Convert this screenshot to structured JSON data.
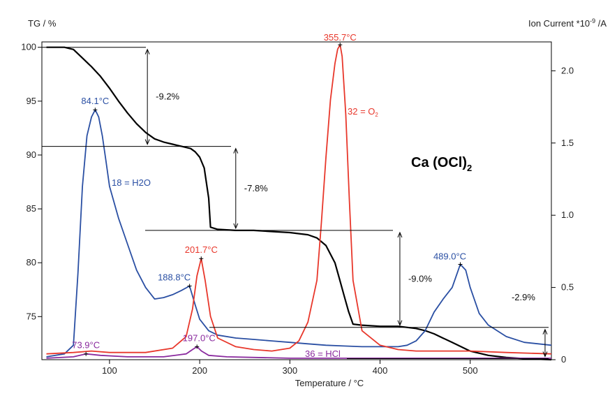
{
  "chart_data": {
    "type": "line",
    "title": "Ca (OCl)",
    "title_subscript": "2",
    "xlabel": "Temperature / °C",
    "ylabel_left": "TG / %",
    "ylabel_right_main": "Ion Current *10",
    "ylabel_right_sup": "-9",
    "ylabel_right_tail": " /A",
    "xlim": [
      25,
      590
    ],
    "ylim_left": [
      71,
      100.5
    ],
    "ylim_right": [
      0,
      2.2
    ],
    "x_ticks": [
      100,
      200,
      300,
      400,
      500
    ],
    "y_left_ticks": [
      75,
      80,
      85,
      90,
      95,
      100
    ],
    "y_right_ticks": [
      0,
      0.5,
      1.0,
      1.5,
      2.0
    ],
    "x_tick_labels": [
      "100",
      "200",
      "300",
      "400",
      "500"
    ],
    "y_left_tick_labels": [
      "75",
      "80",
      "85",
      "90",
      "95",
      "100"
    ],
    "y_right_tick_labels": [
      "0",
      "0.5",
      "1.0",
      "1.5",
      "2.0"
    ],
    "grid": false,
    "series": [
      {
        "name": "TG",
        "axis": "left",
        "color": "#000000",
        "x": [
          30,
          50,
          60,
          70,
          80,
          90,
          100,
          110,
          120,
          130,
          140,
          150,
          160,
          170,
          180,
          190,
          195,
          200,
          205,
          210,
          212,
          220,
          240,
          260,
          280,
          300,
          320,
          330,
          340,
          350,
          355,
          360,
          365,
          370,
          380,
          400,
          420,
          440,
          450,
          460,
          470,
          480,
          490,
          500,
          520,
          540,
          560,
          590
        ],
        "y": [
          100,
          100,
          99.8,
          99.0,
          98.2,
          97.3,
          96.2,
          95.0,
          93.9,
          92.9,
          92.1,
          91.5,
          91.2,
          91.0,
          90.8,
          90.6,
          90.3,
          89.8,
          88.8,
          86.0,
          83.3,
          83.1,
          83.0,
          83.0,
          82.9,
          82.8,
          82.6,
          82.3,
          81.6,
          80.0,
          78.5,
          77.0,
          75.5,
          74.3,
          74.2,
          74.1,
          74.1,
          73.9,
          73.7,
          73.4,
          73.0,
          72.6,
          72.2,
          71.8,
          71.4,
          71.2,
          71.1,
          71.0
        ]
      },
      {
        "name": "18 = H2O",
        "axis": "right",
        "color": "#2a4fa3",
        "x": [
          30,
          50,
          60,
          65,
          70,
          75,
          80,
          84.1,
          88,
          92,
          96,
          100,
          110,
          120,
          130,
          140,
          150,
          160,
          170,
          180,
          188.8,
          195,
          200,
          210,
          220,
          240,
          260,
          280,
          300,
          320,
          340,
          360,
          380,
          400,
          420,
          430,
          440,
          450,
          460,
          470,
          480,
          489,
          495,
          500,
          510,
          520,
          540,
          560,
          590
        ],
        "y": [
          0.02,
          0.04,
          0.1,
          0.6,
          1.2,
          1.55,
          1.68,
          1.73,
          1.68,
          1.55,
          1.38,
          1.2,
          0.98,
          0.8,
          0.62,
          0.5,
          0.42,
          0.43,
          0.45,
          0.48,
          0.51,
          0.38,
          0.28,
          0.2,
          0.17,
          0.15,
          0.14,
          0.13,
          0.12,
          0.11,
          0.1,
          0.095,
          0.09,
          0.09,
          0.09,
          0.1,
          0.13,
          0.2,
          0.33,
          0.42,
          0.5,
          0.66,
          0.62,
          0.5,
          0.32,
          0.24,
          0.16,
          0.12,
          0.1
        ]
      },
      {
        "name": "32 = O2",
        "axis": "right",
        "color": "#e8372b",
        "x": [
          30,
          60,
          80,
          100,
          140,
          170,
          185,
          192,
          197,
          201.7,
          206,
          212,
          220,
          240,
          260,
          280,
          300,
          310,
          320,
          330,
          335,
          340,
          345,
          350,
          353,
          355.7,
          358,
          362,
          366,
          370,
          380,
          400,
          420,
          440,
          480,
          500,
          540,
          590
        ],
        "y": [
          0.04,
          0.05,
          0.06,
          0.05,
          0.05,
          0.08,
          0.16,
          0.35,
          0.58,
          0.7,
          0.55,
          0.3,
          0.15,
          0.09,
          0.07,
          0.06,
          0.08,
          0.13,
          0.26,
          0.55,
          0.95,
          1.4,
          1.8,
          2.05,
          2.15,
          2.18,
          2.1,
          1.7,
          1.1,
          0.55,
          0.2,
          0.1,
          0.07,
          0.06,
          0.06,
          0.06,
          0.05,
          0.04
        ]
      },
      {
        "name": "36 = HCl",
        "axis": "right",
        "color": "#8a2a9e",
        "x": [
          30,
          60,
          73.9,
          90,
          120,
          160,
          185,
          192,
          197,
          202,
          210,
          230,
          300,
          400,
          500,
          590
        ],
        "y": [
          0.01,
          0.02,
          0.04,
          0.03,
          0.02,
          0.02,
          0.04,
          0.07,
          0.09,
          0.06,
          0.03,
          0.02,
          0.01,
          0.01,
          0.01,
          0.01
        ]
      }
    ],
    "peak_labels": [
      {
        "text": "84.1°C",
        "x": 84.1,
        "y": 1.73,
        "axis": "right",
        "series": "18 = H2O"
      },
      {
        "text": "188.8°C",
        "x": 188.8,
        "y": 0.51,
        "axis": "right",
        "series": "18 = H2O"
      },
      {
        "text": "489.0°C",
        "x": 489,
        "y": 0.66,
        "axis": "right",
        "series": "18 = H2O"
      },
      {
        "text": "201.7°C",
        "x": 201.7,
        "y": 0.7,
        "axis": "right",
        "series": "32 = O2"
      },
      {
        "text": "355.7°C",
        "x": 355.7,
        "y": 2.18,
        "axis": "right",
        "series": "32 = O2"
      },
      {
        "text": "73.9°C",
        "x": 73.9,
        "y": 0.04,
        "axis": "right",
        "series": "36 = HCl"
      },
      {
        "text": "197.0°C",
        "x": 197,
        "y": 0.09,
        "axis": "right",
        "series": "36 = HCl"
      }
    ],
    "mass_steps": [
      {
        "label": "-9.2%",
        "x": 142,
        "y_top": 100,
        "y_bottom": 90.8
      },
      {
        "label": "-7.8%",
        "x": 240,
        "y_top": 90.8,
        "y_bottom": 83.0
      },
      {
        "label": "-9.0%",
        "x": 422,
        "y_top": 83.0,
        "y_bottom": 74.0
      },
      {
        "label": "-2.9%",
        "x": 583,
        "y_top": 74.0,
        "y_bottom": 71.1
      }
    ],
    "series_labels": [
      {
        "main": "18 = H2O",
        "sub": "",
        "series": "18 = H2O"
      },
      {
        "main": "32 = O",
        "sub": "2",
        "series": "32 = O2"
      },
      {
        "main": "36 = HCl",
        "sub": "",
        "series": "36 = HCl"
      }
    ]
  }
}
